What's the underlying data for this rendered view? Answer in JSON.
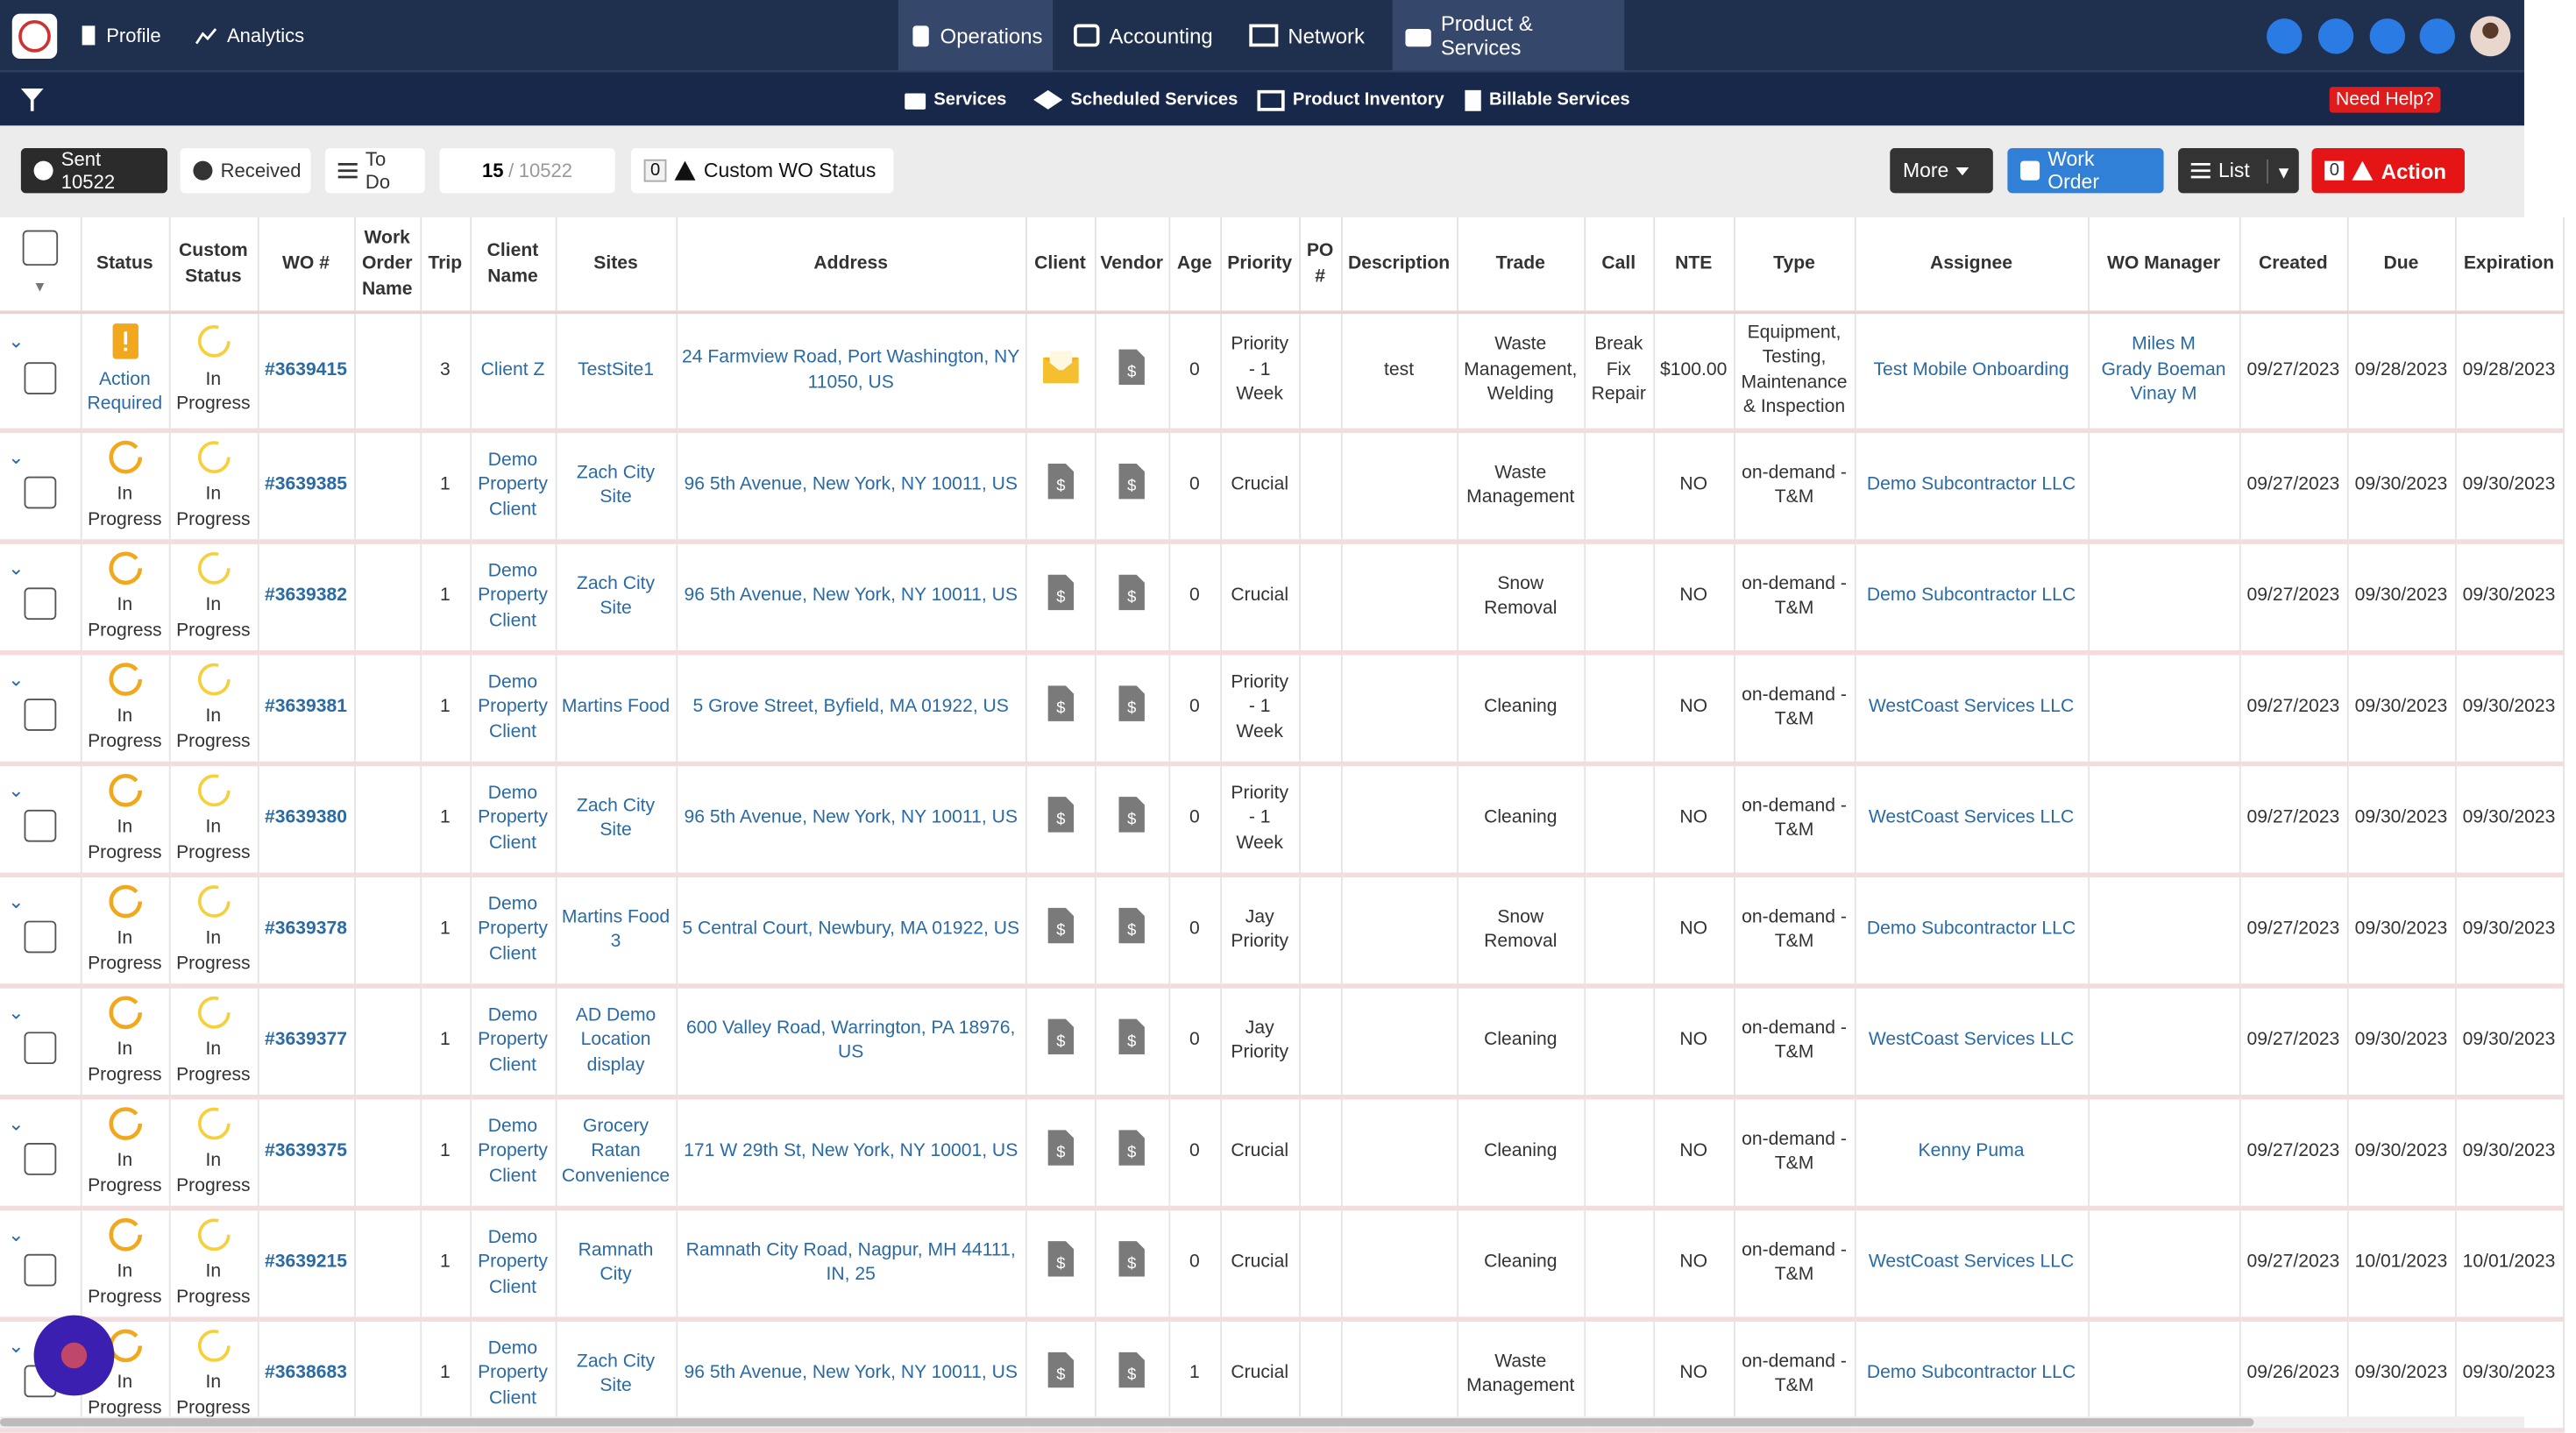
{
  "nav": {
    "items": [
      "Profile",
      "Analytics",
      "Operations",
      "Accounting",
      "Network",
      "Product & Services"
    ]
  },
  "subnav": {
    "items": [
      "Services",
      "Scheduled Services",
      "Product Inventory",
      "Billable Services"
    ],
    "help": "Need Help?"
  },
  "toolbar": {
    "sent": "Sent 10522",
    "received": "Received",
    "todo": "To Do",
    "page_current": "15",
    "page_separator": "/",
    "page_total": "10522",
    "custom_count": "0",
    "custom_status": "Custom WO Status",
    "more": "More",
    "work_order": "Work Order",
    "list": "List",
    "action_count": "0",
    "action": "Action"
  },
  "table": {
    "columns": [
      "Status",
      "Custom Status",
      "WO #",
      "Work Order Name",
      "Trip",
      "Client Name",
      "Sites",
      "Address",
      "Client",
      "Vendor",
      "Age",
      "Priority",
      "PO #",
      "Description",
      "Trade",
      "Call",
      "NTE",
      "Type",
      "Assignee",
      "WO Manager",
      "Created",
      "Due",
      "Expiration"
    ],
    "rows": [
      [
        "Action Required",
        "In Progress",
        "#3639415",
        null,
        "3",
        "Client Z",
        "TestSite1",
        "24 Farmview Road, Port Washington, NY 11050, US",
        null,
        null,
        "0",
        "Priority - 1 Week",
        null,
        "test",
        "Waste Management, Welding",
        "Break Fix Repair",
        "$100.00",
        "Equipment, Testing, Maintenance & Inspection",
        "Test Mobile Onboarding",
        [
          "Miles M",
          "Grady Boeman",
          "Vinay M"
        ],
        "09/27/2023",
        "09/28/2023",
        "09/28/2023"
      ],
      [
        "In Progress",
        "In Progress",
        "#3639385",
        null,
        "1",
        "Demo Property Client",
        "Zach City Site",
        "96 5th Avenue, New York, NY 10011, US",
        null,
        null,
        "0",
        "Crucial",
        null,
        null,
        "Waste Management",
        null,
        "NO",
        "on-demand - T&M",
        "Demo Subcontractor LLC",
        null,
        "09/27/2023",
        "09/30/2023",
        "09/30/2023"
      ],
      [
        "In Progress",
        "In Progress",
        "#3639382",
        null,
        "1",
        "Demo Property Client",
        "Zach City Site",
        "96 5th Avenue, New York, NY 10011, US",
        null,
        null,
        "0",
        "Crucial",
        null,
        null,
        "Snow Removal",
        null,
        "NO",
        "on-demand - T&M",
        "Demo Subcontractor LLC",
        null,
        "09/27/2023",
        "09/30/2023",
        "09/30/2023"
      ],
      [
        "In Progress",
        "In Progress",
        "#3639381",
        null,
        "1",
        "Demo Property Client",
        "Martins Food",
        "5 Grove Street, Byfield, MA 01922, US",
        null,
        null,
        "0",
        "Priority - 1 Week",
        null,
        null,
        "Cleaning",
        null,
        "NO",
        "on-demand - T&M",
        "WestCoast Services LLC",
        null,
        "09/27/2023",
        "09/30/2023",
        "09/30/2023"
      ],
      [
        "In Progress",
        "In Progress",
        "#3639380",
        null,
        "1",
        "Demo Property Client",
        "Zach City Site",
        "96 5th Avenue, New York, NY 10011, US",
        null,
        null,
        "0",
        "Priority - 1 Week",
        null,
        null,
        "Cleaning",
        null,
        "NO",
        "on-demand - T&M",
        "WestCoast Services LLC",
        null,
        "09/27/2023",
        "09/30/2023",
        "09/30/2023"
      ],
      [
        "In Progress",
        "In Progress",
        "#3639378",
        null,
        "1",
        "Demo Property Client",
        "Martins Food 3",
        "5 Central Court, Newbury, MA 01922, US",
        null,
        null,
        "0",
        "Jay Priority",
        null,
        null,
        "Snow Removal",
        null,
        "NO",
        "on-demand - T&M",
        "Demo Subcontractor LLC",
        null,
        "09/27/2023",
        "09/30/2023",
        "09/30/2023"
      ],
      [
        "In Progress",
        "In Progress",
        "#3639377",
        null,
        "1",
        "Demo Property Client",
        "AD Demo Location display",
        "600 Valley Road, Warrington, PA 18976, US",
        null,
        null,
        "0",
        "Jay Priority",
        null,
        null,
        "Cleaning",
        null,
        "NO",
        "on-demand - T&M",
        "WestCoast Services LLC",
        null,
        "09/27/2023",
        "09/30/2023",
        "09/30/2023"
      ],
      [
        "In Progress",
        "In Progress",
        "#3639375",
        null,
        "1",
        "Demo Property Client",
        "Grocery Ratan Convenience",
        "171 W 29th St, New York, NY 10001, US",
        null,
        null,
        "0",
        "Crucial",
        null,
        null,
        "Cleaning",
        null,
        "NO",
        "on-demand - T&M",
        "Kenny Puma",
        null,
        "09/27/2023",
        "09/30/2023",
        "09/30/2023"
      ],
      [
        "In Progress",
        "In Progress",
        "#3639215",
        null,
        "1",
        "Demo Property Client",
        "Ramnath City",
        "Ramnath City Road, Nagpur, MH 44111, IN, 25",
        null,
        null,
        "0",
        "Crucial",
        null,
        null,
        "Cleaning",
        null,
        "NO",
        "on-demand - T&M",
        "WestCoast Services LLC",
        null,
        "09/27/2023",
        "10/01/2023",
        "10/01/2023"
      ],
      [
        "In Progress",
        "In Progress",
        "#3638683",
        null,
        "1",
        "Demo Property Client",
        "Zach City Site",
        "96 5th Avenue, New York, NY 10011, US",
        null,
        null,
        "1",
        "Crucial",
        null,
        null,
        "Waste Management",
        null,
        "NO",
        "on-demand - T&M",
        "Demo Subcontractor LLC",
        null,
        "09/26/2023",
        "09/30/2023",
        "09/30/2023"
      ]
    ]
  }
}
